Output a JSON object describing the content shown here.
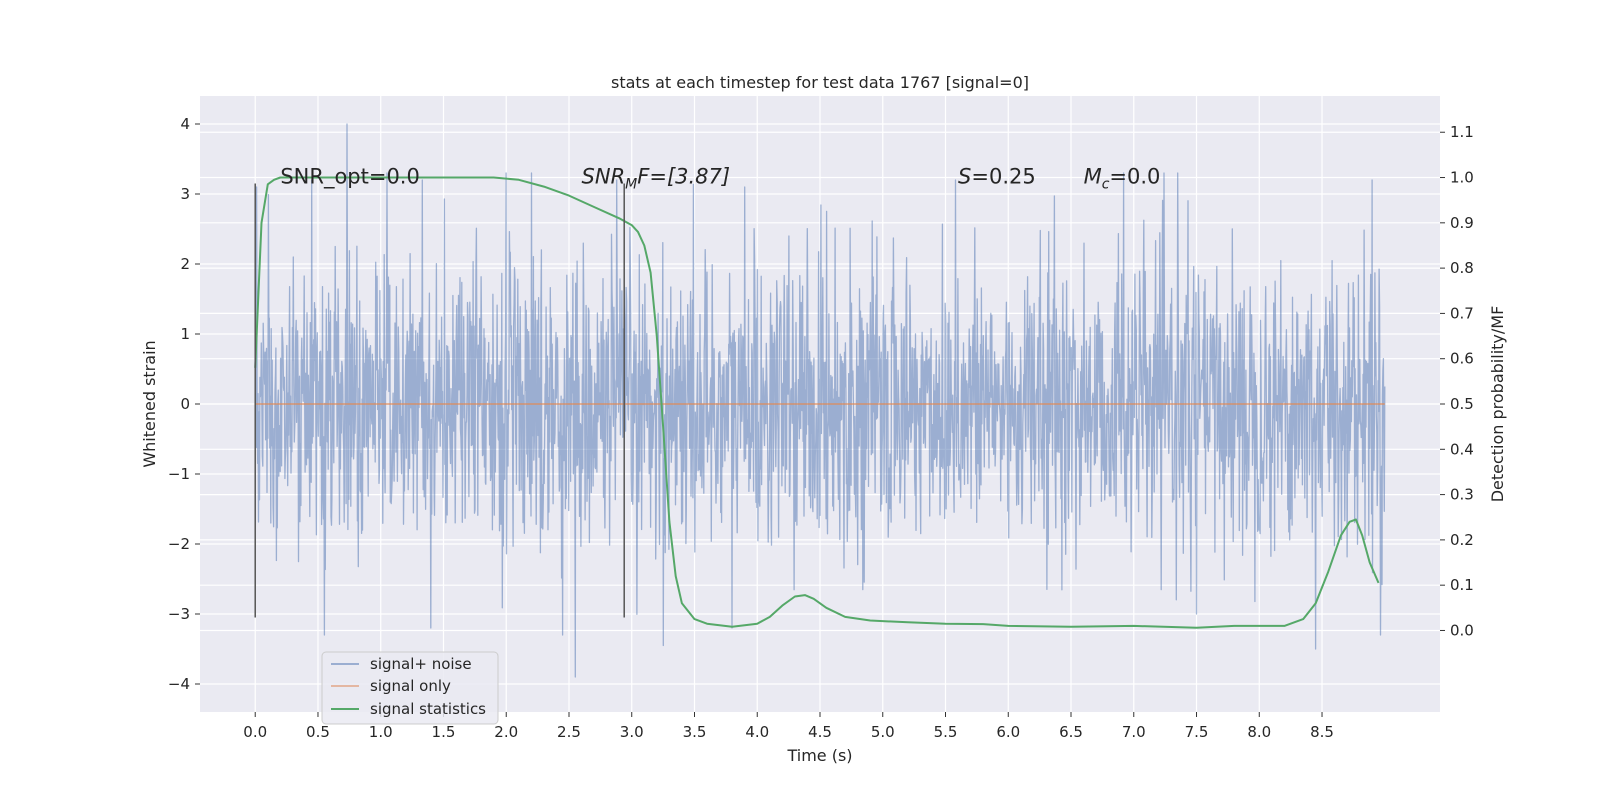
{
  "chart_data": {
    "type": "line",
    "title": "stats at each timestep for test data 1767 [signal=0]",
    "xlabel": "Time (s)",
    "ylabel": "Whitened strain",
    "y2label": "Detection probability/MF",
    "xlim": [
      -0.44,
      9.44
    ],
    "ylim": [
      -4.4,
      4.4
    ],
    "y2lim": [
      -0.18,
      1.18
    ],
    "x_ticks": [
      "0.0",
      "0.5",
      "1.0",
      "1.5",
      "2.0",
      "2.5",
      "3.0",
      "3.5",
      "4.0",
      "4.5",
      "5.0",
      "5.5",
      "6.0",
      "6.5",
      "7.0",
      "7.5",
      "8.0",
      "8.5"
    ],
    "y_ticks": [
      "4",
      "3",
      "2",
      "1",
      "0",
      "−1",
      "−2",
      "−3",
      "−4"
    ],
    "y2_ticks": [
      "0.0",
      "0.1",
      "0.2",
      "0.3",
      "0.4",
      "0.5",
      "0.6",
      "0.7",
      "0.8",
      "0.9",
      "1.0",
      "1.1"
    ],
    "grid": true,
    "legend_position": "lower-left",
    "colors": {
      "background": "#eaeaf2",
      "noise": "#4c72b0",
      "signal": "#dd8452",
      "stats": "#55a868",
      "vline": "#555555"
    },
    "series": [
      {
        "name": "signal+ noise",
        "x_range": [
          0.0,
          9.0
        ],
        "typical_range": [
          -2.6,
          2.6
        ],
        "peaks": [
          {
            "x": 0.73,
            "y": 4.0
          },
          {
            "x": 0.01,
            "y": 3.1
          },
          {
            "x": 0.45,
            "y": 3.2
          },
          {
            "x": 1.05,
            "y": 3.3
          },
          {
            "x": 1.33,
            "y": 3.2
          },
          {
            "x": 2.0,
            "y": 3.3
          },
          {
            "x": 2.2,
            "y": 3.3
          },
          {
            "x": 2.88,
            "y": 3.2
          },
          {
            "x": 3.9,
            "y": 3.1
          },
          {
            "x": 5.58,
            "y": 3.2
          },
          {
            "x": 6.92,
            "y": 3.3
          },
          {
            "x": 7.35,
            "y": 3.3
          },
          {
            "x": 8.9,
            "y": 3.2
          },
          {
            "x": 2.55,
            "y": -3.9
          },
          {
            "x": 3.25,
            "y": -3.45
          },
          {
            "x": 8.45,
            "y": -3.5
          },
          {
            "x": 0.55,
            "y": -3.3
          },
          {
            "x": 2.45,
            "y": -3.3
          },
          {
            "x": 1.4,
            "y": -3.2
          },
          {
            "x": 3.8,
            "y": -3.2
          },
          {
            "x": 7.5,
            "y": -3.0
          }
        ]
      },
      {
        "name": "signal only",
        "x": [
          0.0,
          9.0
        ],
        "y": [
          0.0,
          0.0
        ]
      },
      {
        "name": "signal statistics",
        "axis": "right",
        "x": [
          0.0,
          0.05,
          0.1,
          0.15,
          0.2,
          0.3,
          0.5,
          1.0,
          1.5,
          1.9,
          2.1,
          2.3,
          2.5,
          2.7,
          2.9,
          3.0,
          3.05,
          3.1,
          3.15,
          3.2,
          3.25,
          3.3,
          3.35,
          3.4,
          3.5,
          3.6,
          3.8,
          4.0,
          4.1,
          4.2,
          4.3,
          4.38,
          4.45,
          4.55,
          4.7,
          4.9,
          5.2,
          5.5,
          5.8,
          6.0,
          6.5,
          7.0,
          7.5,
          7.8,
          8.2,
          8.35,
          8.45,
          8.55,
          8.65,
          8.72,
          8.77,
          8.82,
          8.88,
          8.95
        ],
        "y": [
          0.58,
          0.9,
          0.985,
          0.995,
          1.0,
          1.0,
          1.0,
          1.0,
          1.0,
          1.0,
          0.995,
          0.98,
          0.96,
          0.935,
          0.91,
          0.895,
          0.88,
          0.85,
          0.79,
          0.65,
          0.45,
          0.24,
          0.12,
          0.06,
          0.025,
          0.015,
          0.008,
          0.015,
          0.03,
          0.055,
          0.075,
          0.078,
          0.07,
          0.05,
          0.03,
          0.022,
          0.018,
          0.015,
          0.014,
          0.01,
          0.008,
          0.01,
          0.006,
          0.01,
          0.01,
          0.025,
          0.06,
          0.13,
          0.21,
          0.24,
          0.245,
          0.21,
          0.15,
          0.105
        ]
      }
    ],
    "vlines": [
      {
        "x": 0.0,
        "y_range": [
          -3.05,
          3.15
        ]
      },
      {
        "x": 2.94,
        "y_range": [
          -3.05,
          3.15
        ]
      }
    ],
    "annotations": [
      {
        "id": "snr-opt",
        "x": 0.2,
        "y": 3.15
      },
      {
        "id": "snr-mf",
        "x": 2.6,
        "y": 3.15
      },
      {
        "id": "s-value",
        "x": 5.6,
        "y": 3.15
      },
      {
        "id": "mc-value",
        "x": 6.6,
        "y": 3.15
      }
    ]
  },
  "annotation_text": {
    "snr_opt": "SNR_opt=0.0",
    "snr_mf_base": "SNR",
    "snr_mf_sub": "M",
    "snr_mf_rest": "F=[3.87]",
    "s_sym": "S",
    "s_rest": "=0.25",
    "mc_sym": "M",
    "mc_sub": "c",
    "mc_rest": "=0.0"
  },
  "legend": {
    "items": [
      "signal+ noise",
      "signal only",
      "signal statistics"
    ]
  }
}
